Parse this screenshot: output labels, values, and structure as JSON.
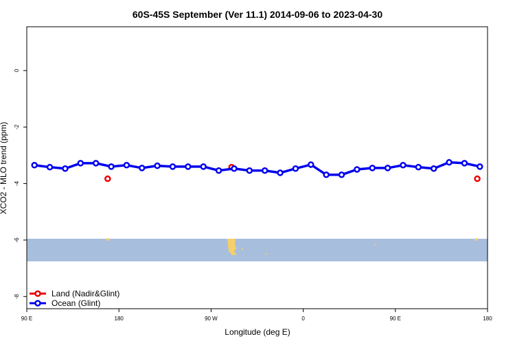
{
  "chart_data": {
    "type": "line",
    "title": "60S-45S September (Ver 11.1)   2014-09-06 to 2023-04-30",
    "x_label": "Longitude (deg E)",
    "y_label": "XCO2 - MLO trend (ppm)",
    "xlim": [
      90,
      540
    ],
    "ylim": [
      -8.43,
      1.55
    ],
    "xticks": [
      {
        "value": 90,
        "label": "90 E"
      },
      180,
      {
        "value": 270,
        "label": "90 W"
      },
      {
        "value": 360,
        "label": "0"
      },
      {
        "value": 450,
        "label": "90 E"
      },
      {
        "value": 540,
        "label": "180"
      }
    ],
    "yticks": [
      0,
      -2,
      -4,
      -6,
      -8
    ],
    "legend": "bottom-left",
    "series": [
      {
        "name": "Land (Nadir&Glint)",
        "color": "#ee0000",
        "line": false,
        "x": [
          169,
          290,
          530
        ],
        "values": [
          -3.83,
          -3.42,
          -3.83
        ]
      },
      {
        "name": "Ocean (Glint)",
        "color": "#0000ee",
        "line": true,
        "x": [
          97.5,
          112.5,
          127.5,
          142.5,
          157.5,
          172.5,
          187.5,
          202.5,
          217.5,
          232.5,
          247.5,
          262.5,
          277.5,
          292.5,
          307.5,
          322.5,
          337.5,
          352.5,
          367.5,
          382.5,
          397.5,
          412.5,
          427.5,
          442.5,
          457.5,
          472.5,
          487.5,
          502.5,
          517.5,
          532.5
        ],
        "values": [
          -3.35,
          -3.42,
          -3.47,
          -3.28,
          -3.28,
          -3.4,
          -3.35,
          -3.45,
          -3.37,
          -3.4,
          -3.4,
          -3.4,
          -3.54,
          -3.47,
          -3.54,
          -3.54,
          -3.62,
          -3.47,
          -3.33,
          -3.69,
          -3.69,
          -3.5,
          -3.45,
          -3.45,
          -3.35,
          -3.42,
          -3.47,
          -3.25,
          -3.28,
          -3.4
        ]
      }
    ]
  }
}
